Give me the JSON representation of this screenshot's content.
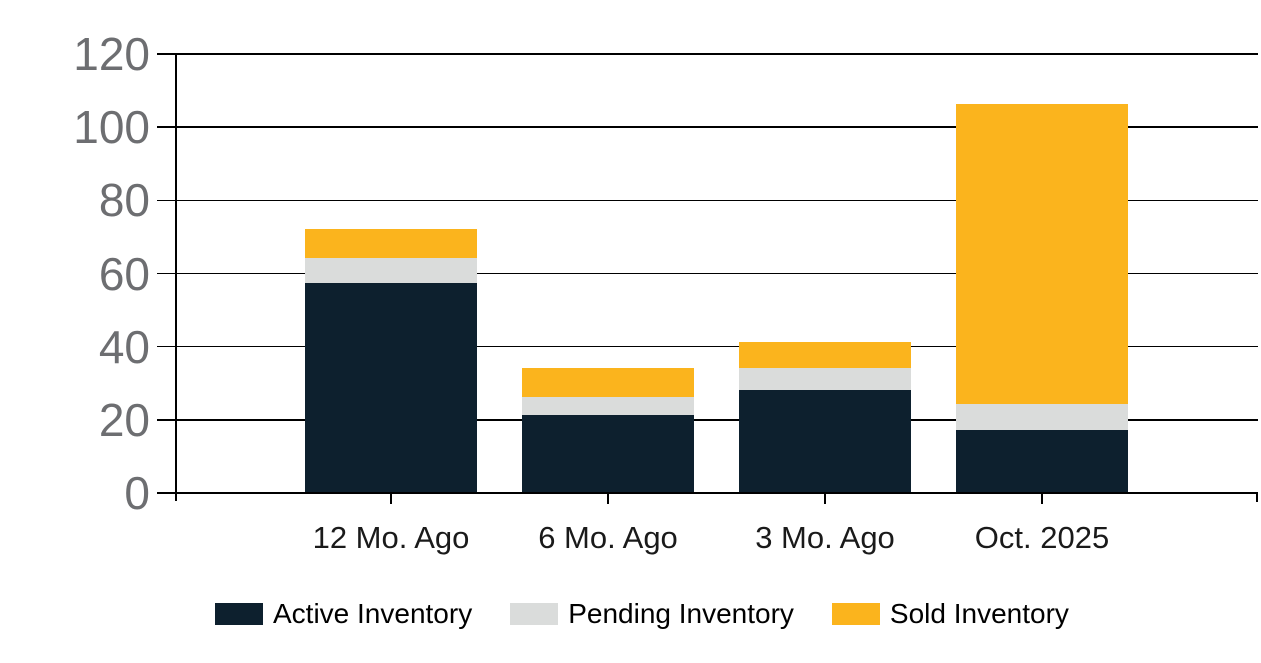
{
  "chart_data": {
    "type": "bar",
    "stacked": true,
    "categories": [
      "12 Mo. Ago",
      "6 Mo. Ago",
      "3 Mo. Ago",
      "Oct. 2025"
    ],
    "series": [
      {
        "name": "Active Inventory",
        "color": "#0d202e",
        "values": [
          57,
          21,
          28,
          17
        ]
      },
      {
        "name": "Pending Inventory",
        "color": "#dadcdb",
        "values": [
          7,
          5,
          6,
          7
        ]
      },
      {
        "name": "Sold Inventory",
        "color": "#fbb41d",
        "values": [
          8,
          8,
          7,
          82
        ]
      }
    ],
    "stack_totals": [
      72,
      34,
      41,
      106
    ],
    "ylim": [
      0,
      120
    ],
    "y_ticks": [
      0,
      20,
      40,
      60,
      80,
      100,
      120
    ],
    "grid": true,
    "legend_position": "bottom"
  },
  "colors": {
    "background": "#ffffff",
    "axis_line": "#000000",
    "gridline": "#000000",
    "y_tick_label": "#6d6e71",
    "x_tick_label": "#1a1a1a",
    "legend_text": "#000000"
  }
}
